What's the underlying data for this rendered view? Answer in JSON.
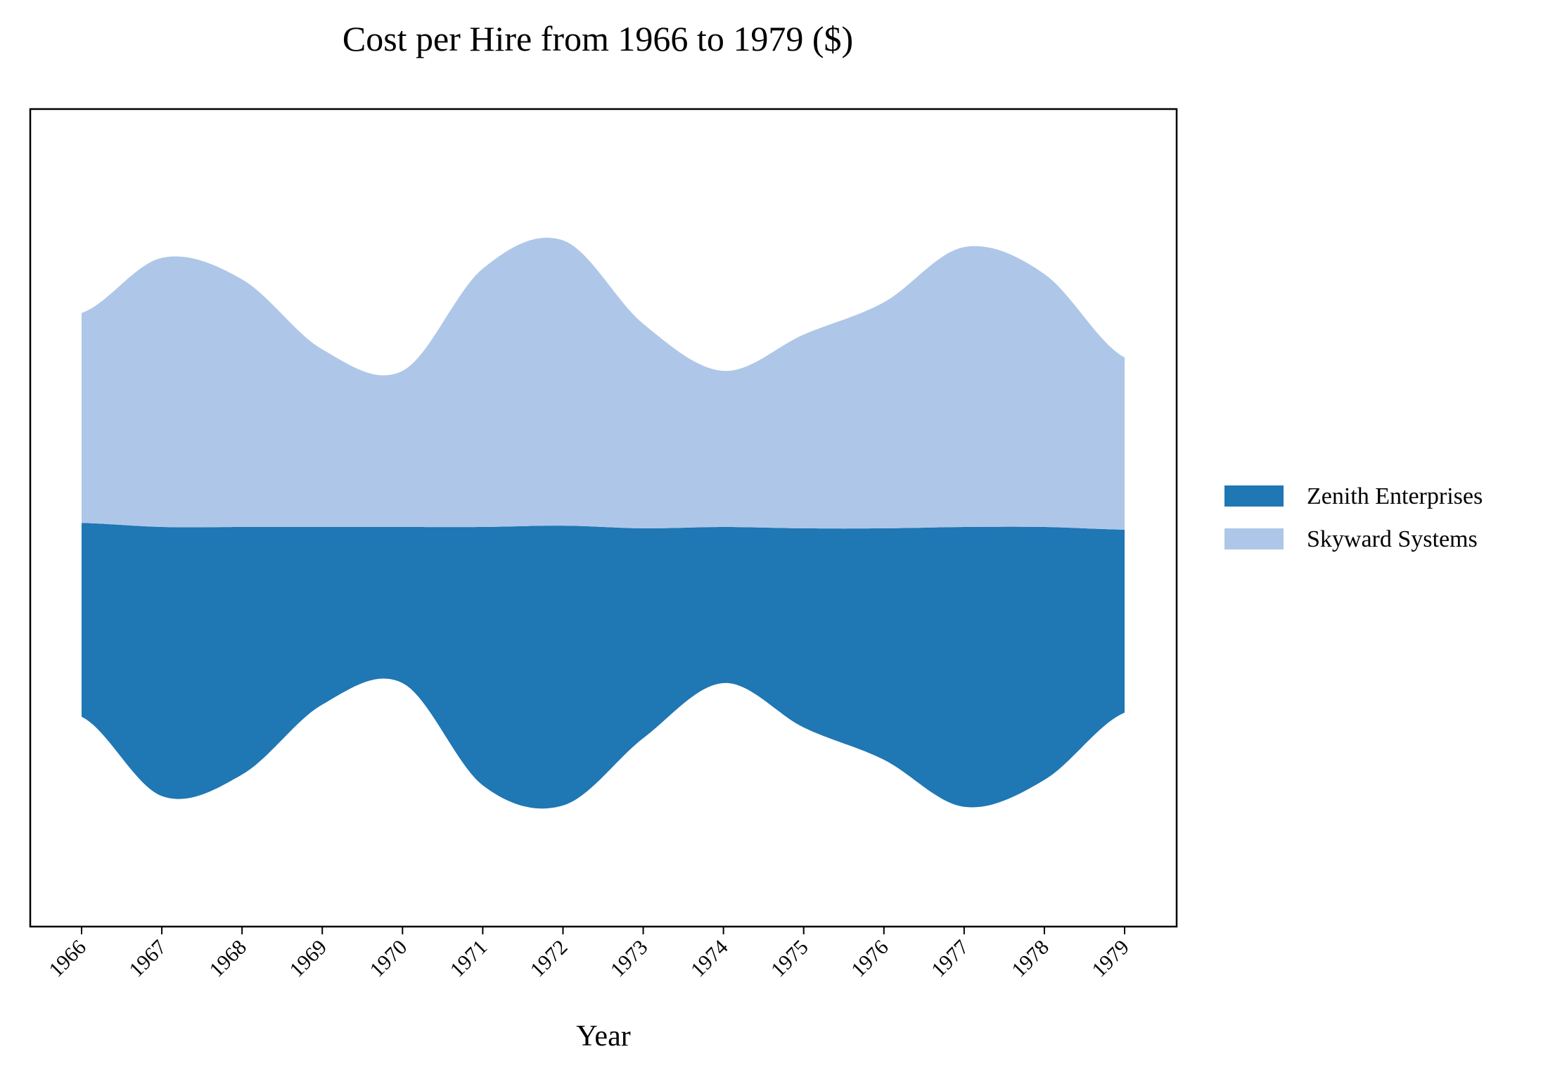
{
  "chart_data": {
    "type": "area",
    "layout": "streamgraph",
    "title": "Cost per Hire from 1966 to 1979 ($)",
    "xlabel": "Year",
    "ylabel": "",
    "yaxis_visible": false,
    "grid": false,
    "legend_position": "right",
    "x": [
      1966,
      1967,
      1968,
      1969,
      1970,
      1971,
      1972,
      1973,
      1974,
      1975,
      1976,
      1977,
      1978,
      1979
    ],
    "series": [
      {
        "name": "Zenith Enterprises",
        "color": "#1f77b4",
        "values": [
          1800,
          2500,
          2300,
          1650,
          1450,
          2400,
          2600,
          1950,
          1450,
          1850,
          2150,
          2600,
          2350,
          1700
        ]
      },
      {
        "name": "Skyward Systems",
        "color": "#aec7e8",
        "values": [
          1950,
          2500,
          2300,
          1650,
          1450,
          2400,
          2650,
          1900,
          1450,
          1800,
          2100,
          2600,
          2350,
          1600
        ]
      }
    ]
  }
}
